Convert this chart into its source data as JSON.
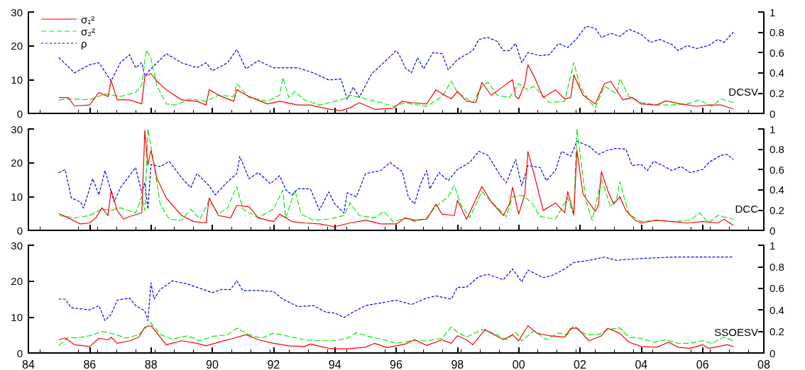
{
  "chart_data": [
    {
      "type": "line",
      "xlim": [
        1984,
        2008
      ],
      "xticks": [
        {
          "value": 1984,
          "label": null
        },
        {
          "value": 1986,
          "label": null
        },
        {
          "value": 1988,
          "label": null
        },
        {
          "value": 1990,
          "label": null
        },
        {
          "value": 1992,
          "label": null
        },
        {
          "value": 1994,
          "label": null
        },
        {
          "value": 1996,
          "label": null
        },
        {
          "value": 1998,
          "label": null
        },
        {
          "value": 2000,
          "label": null
        },
        {
          "value": 2002,
          "label": null
        },
        {
          "value": 2004,
          "label": null
        },
        {
          "value": 2006,
          "label": null
        },
        {
          "value": 2008,
          "label": null
        }
      ],
      "ylim": [
        0,
        30
      ],
      "yticks": [
        0,
        10,
        20,
        30
      ],
      "y2lim": [
        0,
        1
      ],
      "y2ticks": [
        0,
        0.2,
        0.4,
        0.6,
        0.8,
        1
      ],
      "tick_labels": "y",
      "legend": "top left",
      "marker": "none",
      "annotations": [
        "DCSV"
      ],
      "series": [
        {
          "name": "σ₁²",
          "color": "#ff0000",
          "line_style": "solid",
          "x": [
            1985,
            1985.3,
            1985.5,
            1986,
            1986.3,
            1986.6,
            1986.7,
            1986.9,
            1987.3,
            1987.7,
            1987.8,
            1988,
            1988.2,
            1988.5,
            1989,
            1989.5,
            1989.8,
            1989.9,
            1990.3,
            1990.7,
            1990.8,
            1991.2,
            1991.8,
            1992.2,
            1992.8,
            1993.2,
            1993.8,
            1994.2,
            1994.5,
            1994.8,
            1995.3,
            1995.9,
            1996.2,
            1996.5,
            1997,
            1997.3,
            1997.5,
            1997.8,
            1998,
            1998.3,
            1998.6,
            1998.8,
            1999.1,
            1999.5,
            1999.8,
            1999.9,
            2000,
            2000.2,
            2000.3,
            2000.5,
            2000.8,
            2001.2,
            2001.5,
            2001.7,
            2001.8,
            2002.1,
            2002.5,
            2002.8,
            2003,
            2003.3,
            2003.4,
            2003.7,
            2004,
            2004.5,
            2004.8,
            2005.3,
            2005.8,
            2006.2,
            2006.6,
            2007
          ],
          "values": [
            4.7,
            4.7,
            2.2,
            2.5,
            6.2,
            5,
            9.7,
            4,
            4,
            2.8,
            11,
            11.8,
            9.5,
            7,
            4,
            3.6,
            2.5,
            7,
            5,
            3.6,
            7,
            5,
            2.8,
            3.6,
            2.5,
            2.5,
            1.3,
            0.8,
            1.7,
            3.2,
            1.2,
            1.5,
            3.6,
            3.2,
            2.8,
            7,
            5.8,
            4.3,
            6.5,
            3.6,
            3.2,
            9.2,
            5.4,
            8,
            10,
            5,
            4.3,
            8.8,
            14.4,
            11,
            4.7,
            7,
            4.3,
            4.7,
            11.4,
            5.4,
            2.8,
            8.8,
            9.5,
            5.4,
            4,
            4.7,
            2.8,
            2.5,
            3.7,
            2.8,
            2.1,
            2.5,
            2.5,
            1.3
          ]
        },
        {
          "name": "σ₂²",
          "color": "#00ee00",
          "line_style": "dashed",
          "x": [
            1985,
            1985.5,
            1986,
            1986.5,
            1987,
            1987.5,
            1987.7,
            1987.85,
            1988,
            1988.2,
            1988.5,
            1988.8,
            1989.3,
            1989.8,
            1990.2,
            1990.7,
            1990.8,
            1991.2,
            1991.8,
            1992.2,
            1992.3,
            1992.5,
            1992.7,
            1993,
            1993.5,
            1994,
            1994.3,
            1994.5,
            1995,
            1995.5,
            1995.9,
            1996.3,
            1996.5,
            1997,
            1997.5,
            1997.8,
            1998,
            1998.5,
            1998.8,
            1999,
            1999.3,
            1999.7,
            2000,
            2000.3,
            2000.5,
            2001,
            2001.5,
            2001.8,
            2002,
            2002.3,
            2002.5,
            2002.8,
            2003.2,
            2003.3,
            2003.6,
            2004,
            2004.5,
            2005,
            2005.5,
            2005.9,
            2006.3,
            2006.6,
            2007
          ],
          "values": [
            4,
            4.3,
            4,
            5.8,
            5,
            6.2,
            8.4,
            18.8,
            16.2,
            8,
            2.8,
            2.5,
            4.3,
            3.6,
            5.4,
            5,
            8.8,
            4.7,
            3.6,
            5.4,
            10.6,
            4.7,
            6.5,
            4,
            2.5,
            3.6,
            4.3,
            5.4,
            4.3,
            3.2,
            2.1,
            3.2,
            2.8,
            2.1,
            5,
            9.5,
            6.2,
            3.2,
            8,
            9.2,
            5.4,
            4.7,
            8.8,
            7,
            8,
            3.2,
            3.6,
            15.1,
            8,
            3.6,
            1.7,
            8,
            5.8,
            10.3,
            5,
            3.2,
            2.5,
            2.5,
            2.8,
            4,
            2.1,
            4.3,
            3.2
          ]
        },
        {
          "name": "ρ",
          "color": "#0000ff",
          "line_style": "dotted",
          "axis": "y2",
          "x": [
            1985,
            1985.5,
            1986,
            1986.3,
            1986.7,
            1987,
            1987.3,
            1987.5,
            1987.7,
            1987.8,
            1988,
            1988.5,
            1989,
            1989.5,
            1989.8,
            1990,
            1990.5,
            1990.8,
            1991.1,
            1991.5,
            1992,
            1992.3,
            1992.8,
            1993.3,
            1993.8,
            1994.2,
            1994.4,
            1994.6,
            1994.8,
            1995.2,
            1995.7,
            1996,
            1996.1,
            1996.3,
            1996.5,
            1996.7,
            1996.9,
            1997.2,
            1997.5,
            1997.7,
            1998,
            1998.5,
            1998.7,
            1999,
            1999.3,
            1999.5,
            1999.7,
            1999.9,
            2000.1,
            2000.3,
            2000.7,
            2001,
            2001.3,
            2001.6,
            2001.9,
            2002.2,
            2002.5,
            2002.7,
            2003,
            2003.3,
            2003.6,
            2004,
            2004.3,
            2004.6,
            2005,
            2005.2,
            2005.5,
            2005.8,
            2006.2,
            2006.5,
            2006.7,
            2007
          ],
          "values": [
            0.55,
            0.4,
            0.48,
            0.5,
            0.32,
            0.5,
            0.58,
            0.45,
            0.5,
            0.37,
            0.44,
            0.59,
            0.5,
            0.45,
            0.5,
            0.42,
            0.5,
            0.63,
            0.44,
            0.52,
            0.45,
            0.45,
            0.45,
            0.4,
            0.33,
            0.34,
            0.14,
            0.26,
            0.16,
            0.39,
            0.53,
            0.62,
            0.58,
            0.45,
            0.4,
            0.55,
            0.44,
            0.6,
            0.59,
            0.43,
            0.53,
            0.62,
            0.73,
            0.75,
            0.71,
            0.62,
            0.62,
            0.69,
            0.5,
            0.6,
            0.57,
            0.58,
            0.69,
            0.65,
            0.74,
            0.86,
            0.84,
            0.75,
            0.79,
            0.76,
            0.83,
            0.78,
            0.7,
            0.73,
            0.68,
            0.62,
            0.67,
            0.64,
            0.67,
            0.73,
            0.7,
            0.8
          ]
        }
      ]
    },
    {
      "type": "line",
      "xlim": [
        1984,
        2008
      ],
      "xticks": [
        {
          "value": 1984,
          "label": null
        },
        {
          "value": 1986,
          "label": null
        },
        {
          "value": 1988,
          "label": null
        },
        {
          "value": 1990,
          "label": null
        },
        {
          "value": 1992,
          "label": null
        },
        {
          "value": 1994,
          "label": null
        },
        {
          "value": 1996,
          "label": null
        },
        {
          "value": 1998,
          "label": null
        },
        {
          "value": 2000,
          "label": null
        },
        {
          "value": 2002,
          "label": null
        },
        {
          "value": 2004,
          "label": null
        },
        {
          "value": 2006,
          "label": null
        },
        {
          "value": 2008,
          "label": null
        }
      ],
      "ylim": [
        0,
        30
      ],
      "yticks": [
        0,
        10,
        20,
        30
      ],
      "y2lim": [
        0,
        1
      ],
      "y2ticks": [
        0,
        0.2,
        0.4,
        0.6,
        0.8,
        1
      ],
      "tick_labels": "y",
      "marker": "none",
      "annotations": [
        "DCC"
      ],
      "series": [
        {
          "color": "#ff0000",
          "line_style": "solid",
          "x": [
            1985,
            1985.3,
            1985.7,
            1986,
            1986.2,
            1986.4,
            1986.6,
            1986.7,
            1986.9,
            1987.1,
            1987.3,
            1987.7,
            1987.8,
            1987.9,
            1988,
            1988.2,
            1988.5,
            1989,
            1989.4,
            1989.8,
            1989.9,
            1990.2,
            1990.6,
            1990.8,
            1991.2,
            1991.5,
            1992,
            1992.2,
            1992.6,
            1993,
            1993.5,
            1994,
            1994.5,
            1995,
            1995.5,
            1996,
            1996.3,
            1996.6,
            1997,
            1997.3,
            1997.5,
            1997.9,
            1998,
            1998.3,
            1998.8,
            1999.1,
            1999.5,
            1999.7,
            1999.8,
            2000,
            2000.2,
            2000.3,
            2000.5,
            2000.8,
            2001.2,
            2001.5,
            2001.6,
            2001.8,
            2001.9,
            2002.1,
            2002.5,
            2002.6,
            2002.7,
            2002.9,
            2003.1,
            2003.3,
            2003.5,
            2003.8,
            2004,
            2004.5,
            2005,
            2005.5,
            2006,
            2006.5,
            2006.7,
            2007
          ],
          "values": [
            5.0,
            3.7,
            1.9,
            2.2,
            3.7,
            6.7,
            4.4,
            11.9,
            5.9,
            3.3,
            4.1,
            5.2,
            29.6,
            19.3,
            23.7,
            15.2,
            9.6,
            4.4,
            2.6,
            2.2,
            9.6,
            4.4,
            3.7,
            7.4,
            7,
            3.7,
            2.6,
            4.8,
            2.6,
            2.2,
            1.9,
            1.1,
            2.2,
            3.0,
            1.9,
            1.9,
            3.7,
            3.0,
            3.3,
            7.8,
            4.8,
            4.4,
            8.9,
            3.3,
            13,
            8.5,
            4.4,
            7.8,
            12.8,
            4.8,
            10.7,
            23.3,
            16.7,
            5.9,
            8.1,
            5.2,
            11.5,
            4.8,
            23.7,
            10.7,
            5.6,
            7.4,
            17.4,
            11.9,
            7.8,
            10,
            5.9,
            3.0,
            2.2,
            3.0,
            2.6,
            2.2,
            2.6,
            2.2,
            3.3,
            1.5
          ]
        },
        {
          "color": "#00ee00",
          "line_style": "dashed",
          "x": [
            1985,
            1985.5,
            1986,
            1986.4,
            1986.7,
            1987,
            1987.5,
            1987.7,
            1987.8,
            1987.9,
            1988.1,
            1988.3,
            1988.6,
            1989,
            1989.3,
            1989.6,
            1989.9,
            1990.2,
            1990.5,
            1990.8,
            1991,
            1991.5,
            1992,
            1992.3,
            1992.4,
            1992.7,
            1992.9,
            1993.3,
            1993.8,
            1994.3,
            1994.5,
            1994.8,
            1995.3,
            1995.6,
            1995.9,
            1996.3,
            1996.6,
            1997,
            1997.3,
            1997.7,
            1997.9,
            1998.1,
            1998.4,
            1998.8,
            1999.1,
            1999.6,
            1999.8,
            2000.1,
            2000.4,
            2000.7,
            2001.2,
            2001.6,
            2001.8,
            2001.9,
            2002.2,
            2002.4,
            2002.7,
            2003,
            2003.2,
            2003.3,
            2003.6,
            2004,
            2004.5,
            2005,
            2005.6,
            2005.9,
            2006.2,
            2006.5,
            2007
          ],
          "values": [
            4.4,
            3.7,
            4.4,
            6.3,
            5.9,
            6.7,
            5.2,
            10,
            5.9,
            30,
            19.6,
            7.8,
            3.3,
            3.0,
            6.3,
            3.3,
            8.9,
            4.8,
            6.7,
            13,
            6.3,
            3.7,
            6.3,
            11.9,
            3.7,
            11.9,
            4.8,
            3.0,
            3.3,
            4.4,
            8.1,
            4.4,
            3.7,
            5.6,
            2.6,
            3.7,
            2.6,
            3.7,
            7,
            10,
            13.3,
            7.8,
            3.7,
            11.5,
            8.5,
            4.1,
            10,
            10.4,
            8.5,
            4.1,
            3.3,
            9.6,
            4.4,
            30,
            8.5,
            3.0,
            15.2,
            7,
            9.6,
            14.4,
            4.8,
            2.6,
            3.0,
            2.6,
            3.0,
            5.2,
            2.2,
            4.4,
            3.3
          ]
        },
        {
          "color": "#0000ff",
          "line_style": "dotted",
          "axis": "y2",
          "x": [
            1985,
            1985.2,
            1985.4,
            1985.7,
            1985.8,
            1986.1,
            1986.3,
            1986.5,
            1986.8,
            1987,
            1987.3,
            1987.5,
            1987.7,
            1987.8,
            1987.9,
            1988,
            1988.3,
            1988.6,
            1989,
            1989.3,
            1989.5,
            1989.9,
            1990.1,
            1990.5,
            1990.8,
            1990.9,
            1991.2,
            1991.5,
            1991.9,
            1992.2,
            1992.4,
            1992.6,
            1992.8,
            1993.2,
            1993.5,
            1993.8,
            1994,
            1994.3,
            1994.4,
            1994.7,
            1995,
            1995.5,
            1995.8,
            1996.2,
            1996.4,
            1996.6,
            1996.8,
            1997,
            1997.1,
            1997.4,
            1997.7,
            1998,
            1998.4,
            1998.7,
            1999,
            1999.4,
            1999.6,
            1999.9,
            2000.1,
            2000.3,
            2000.7,
            2000.9,
            2001.2,
            2001.4,
            2001.7,
            2001.9,
            2002.3,
            2002.6,
            2002.9,
            2003.2,
            2003.5,
            2003.7,
            2004,
            2004.2,
            2004.4,
            2004.7,
            2005,
            2005.3,
            2005.6,
            2006,
            2006.2,
            2006.6,
            2006.8,
            2007
          ],
          "values": [
            0.57,
            0.6,
            0.32,
            0.28,
            0.22,
            0.51,
            0.35,
            0.59,
            0.28,
            0.42,
            0.54,
            0.62,
            0.37,
            0.47,
            0.21,
            0.65,
            0.63,
            0.68,
            0.52,
            0.42,
            0.56,
            0.44,
            0.35,
            0.48,
            0.56,
            0.73,
            0.51,
            0.57,
            0.46,
            0.54,
            0.4,
            0.35,
            0.41,
            0.41,
            0.2,
            0.38,
            0.26,
            0.17,
            0.37,
            0.33,
            0.56,
            0.59,
            0.67,
            0.58,
            0.33,
            0.26,
            0.46,
            0.59,
            0.41,
            0.57,
            0.49,
            0.6,
            0.67,
            0.78,
            0.74,
            0.54,
            0.47,
            0.7,
            0.44,
            0.64,
            0.62,
            0.49,
            0.59,
            0.78,
            0.73,
            0.88,
            0.83,
            0.75,
            0.79,
            0.81,
            0.8,
            0.64,
            0.65,
            0.59,
            0.68,
            0.64,
            0.59,
            0.63,
            0.57,
            0.6,
            0.67,
            0.74,
            0.75,
            0.7
          ]
        }
      ]
    },
    {
      "type": "line",
      "xlim": [
        1984,
        2008
      ],
      "xticks": [
        {
          "value": 1984,
          "label": "84"
        },
        {
          "value": 1986,
          "label": "86"
        },
        {
          "value": 1988,
          "label": "88"
        },
        {
          "value": 1990,
          "label": "90"
        },
        {
          "value": 1992,
          "label": "92"
        },
        {
          "value": 1994,
          "label": "94"
        },
        {
          "value": 1996,
          "label": "96"
        },
        {
          "value": 1998,
          "label": "98"
        },
        {
          "value": 2000,
          "label": "00"
        },
        {
          "value": 2002,
          "label": "02"
        },
        {
          "value": 2004,
          "label": "04"
        },
        {
          "value": 2006,
          "label": "06"
        },
        {
          "value": 2008,
          "label": "08"
        }
      ],
      "ylim": [
        0,
        30
      ],
      "yticks": [
        0,
        10,
        20,
        30
      ],
      "y2lim": [
        0,
        1
      ],
      "y2ticks": [
        0,
        0.2,
        0.4,
        0.6,
        0.8,
        1
      ],
      "marker": "none",
      "annotations": [
        "SSOESV"
      ],
      "series": [
        {
          "color": "#ff0000",
          "line_style": "solid",
          "x": [
            1985,
            1985.2,
            1985.5,
            1986,
            1986.3,
            1986.6,
            1986.7,
            1986.9,
            1987.3,
            1987.6,
            1987.8,
            1988,
            1988.3,
            1988.5,
            1989,
            1989.5,
            1989.8,
            1990.2,
            1990.7,
            1991.1,
            1991.5,
            1992,
            1992.5,
            1993,
            1993.2,
            1993.8,
            1994.3,
            1995,
            1995.3,
            1995.7,
            1996.3,
            1996.6,
            1997,
            1997.5,
            1997.8,
            1998,
            1998.3,
            1998.5,
            1998.9,
            1999.2,
            1999.5,
            1999.8,
            2000,
            2000.3,
            2000.6,
            2001,
            2001.5,
            2001.7,
            2001.9,
            2002.3,
            2002.7,
            2002.9,
            2003.3,
            2003.6,
            2004,
            2004.5,
            2004.9,
            2005.2,
            2005.6,
            2006,
            2006.2,
            2006.8,
            2007
          ],
          "values": [
            3.7,
            4.2,
            2.3,
            1.8,
            4.1,
            3.7,
            4.4,
            2.7,
            3.4,
            4.4,
            7.2,
            7.6,
            4.4,
            2.3,
            3.4,
            2.7,
            2.0,
            3.0,
            4.1,
            5.1,
            3.7,
            2.7,
            2.0,
            1.8,
            2.5,
            1.3,
            1.1,
            1.6,
            2.7,
            1.5,
            2.5,
            3.7,
            2.1,
            3.7,
            2.7,
            4.8,
            3.7,
            2.3,
            6.5,
            5.1,
            3.7,
            5.1,
            3.4,
            7.6,
            5.5,
            4.8,
            4.4,
            6.9,
            6.9,
            3.4,
            4.8,
            6.9,
            5.5,
            3.0,
            1.8,
            1.6,
            3.0,
            1.6,
            1.3,
            2.3,
            1.3,
            2.3,
            1.8
          ]
        },
        {
          "color": "#00ee00",
          "line_style": "dashed",
          "x": [
            1985,
            1985.3,
            1985.6,
            1986,
            1986.4,
            1986.8,
            1987.2,
            1987.6,
            1988,
            1988.3,
            1988.7,
            1989.2,
            1989.6,
            1990,
            1990.5,
            1990.8,
            1991.2,
            1991.6,
            1992,
            1992.4,
            1993,
            1993.5,
            1994,
            1994.4,
            1994.7,
            1995.2,
            1995.6,
            1996,
            1996.5,
            1997,
            1997.5,
            1997.8,
            1998,
            1998.3,
            1998.8,
            1999.2,
            1999.6,
            1999.9,
            2000.1,
            2000.5,
            2000.9,
            2001.3,
            2001.6,
            2001.8,
            2002.2,
            2002.6,
            2002.9,
            2003.3,
            2003.6,
            2004,
            2004.4,
            2004.8,
            2005.2,
            2005.6,
            2006,
            2006.3,
            2006.7,
            2007
          ],
          "values": [
            2.1,
            4.4,
            4.2,
            4.8,
            6.0,
            5.3,
            4.1,
            5.1,
            8.4,
            5.1,
            3.9,
            4.8,
            3.4,
            4.6,
            5.1,
            6.9,
            5.1,
            4.1,
            5.5,
            4.8,
            3.7,
            3.4,
            3.4,
            4.1,
            5.6,
            4.4,
            3.7,
            2.7,
            3.4,
            3.4,
            4.1,
            7.2,
            5.8,
            4.4,
            6.5,
            5.5,
            3.7,
            5.8,
            3.4,
            6.2,
            3.7,
            5.5,
            5.1,
            7.6,
            5.1,
            5.1,
            6.5,
            7.0,
            4.4,
            4.1,
            3.0,
            3.7,
            2.7,
            2.7,
            3.4,
            2.7,
            4.4,
            3.4
          ]
        },
        {
          "color": "#0000ff",
          "line_style": "dotted",
          "axis": "y2",
          "x": [
            1985,
            1985.2,
            1985.4,
            1986,
            1986.3,
            1986.5,
            1986.7,
            1986.9,
            1987.3,
            1987.5,
            1987.8,
            1987.9,
            1988,
            1988.1,
            1988.3,
            1988.7,
            1989.2,
            1989.6,
            1990,
            1990.3,
            1990.6,
            1990.8,
            1991,
            1991.5,
            1992,
            1992.3,
            1992.8,
            1993.3,
            1993.7,
            1994,
            1994.3,
            1994.6,
            1995,
            1995.6,
            1996,
            1996.5,
            1997,
            1997.3,
            1997.8,
            1998,
            1998.3,
            1998.7,
            1999,
            1999.5,
            1999.8,
            2000.1,
            2000.3,
            2000.8,
            2001.1,
            2001.5,
            2001.8,
            2002.3,
            2002.8,
            2003.2,
            2003.6,
            2004.2,
            2005,
            2006,
            2007
          ],
          "values": [
            0.5,
            0.5,
            0.42,
            0.4,
            0.44,
            0.3,
            0.36,
            0.49,
            0.51,
            0.44,
            0.39,
            0.3,
            0.65,
            0.5,
            0.59,
            0.67,
            0.64,
            0.6,
            0.56,
            0.59,
            0.59,
            0.67,
            0.58,
            0.58,
            0.57,
            0.5,
            0.43,
            0.44,
            0.38,
            0.37,
            0.33,
            0.38,
            0.44,
            0.47,
            0.49,
            0.45,
            0.51,
            0.53,
            0.5,
            0.61,
            0.61,
            0.71,
            0.73,
            0.68,
            0.78,
            0.66,
            0.77,
            0.7,
            0.72,
            0.78,
            0.84,
            0.86,
            0.89,
            0.86,
            0.87,
            0.88,
            0.89,
            0.89,
            0.89
          ]
        }
      ]
    }
  ]
}
